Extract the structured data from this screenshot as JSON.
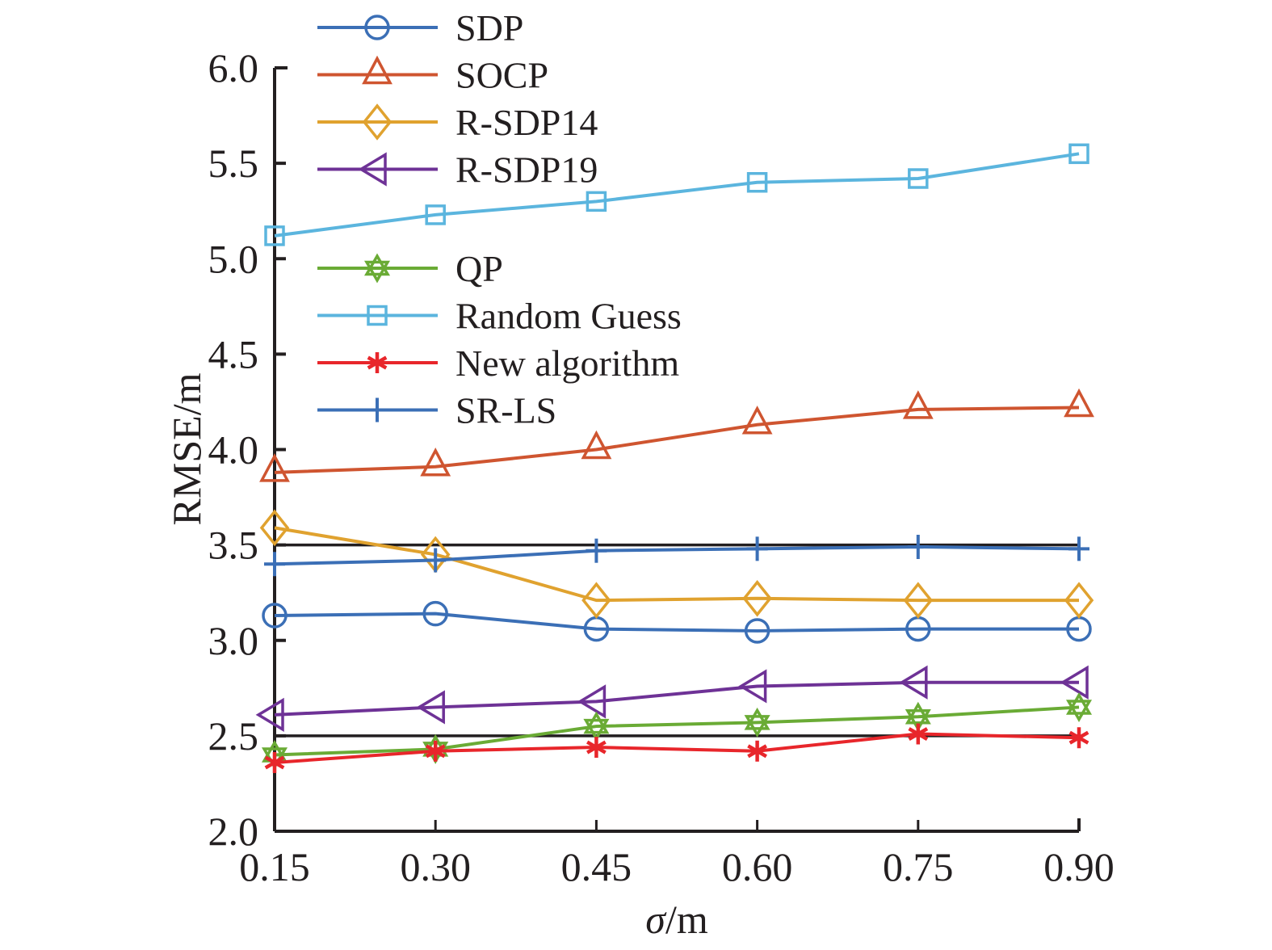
{
  "chart_data": {
    "type": "line",
    "title": "",
    "xlabel": "σ/m",
    "xlabel_italic_part": "σ",
    "xlabel_rest": "/m",
    "ylabel": "RMSE/m",
    "x": [
      0.15,
      0.3,
      0.45,
      0.6,
      0.75,
      0.9
    ],
    "x_tick_labels": [
      "0.15",
      "0.30",
      "0.45",
      "0.60",
      "0.75",
      "0.90"
    ],
    "y_ticks": [
      2.0,
      2.5,
      3.0,
      3.5,
      4.0,
      4.5,
      5.0,
      5.5,
      6.0
    ],
    "y_tick_labels": [
      "2.0",
      "2.5",
      "3.0",
      "3.5",
      "4.0",
      "4.5",
      "5.0",
      "5.5",
      "6.0"
    ],
    "xlim": [
      0.15,
      0.9
    ],
    "ylim": [
      2.0,
      6.0
    ],
    "grid": false,
    "reference_lines": [
      3.5,
      2.5
    ],
    "legend_position": "top-left (two groups inside plot)",
    "series": [
      {
        "name": "SDP",
        "marker": "circle",
        "color": "#3b6fb6",
        "values": [
          3.13,
          3.14,
          3.06,
          3.05,
          3.06,
          3.06
        ]
      },
      {
        "name": "SOCP",
        "marker": "triangle-up",
        "color": "#cf5530",
        "values": [
          3.88,
          3.91,
          4.0,
          4.13,
          4.21,
          4.22
        ]
      },
      {
        "name": "R-SDP14",
        "marker": "diamond",
        "color": "#e0a22f",
        "values": [
          3.59,
          3.45,
          3.21,
          3.22,
          3.21,
          3.21
        ]
      },
      {
        "name": "R-SDP19",
        "marker": "triangle-left",
        "color": "#6e3296",
        "values": [
          2.61,
          2.65,
          2.68,
          2.76,
          2.78,
          2.78
        ]
      },
      {
        "name": "QP",
        "marker": "hexagram",
        "color": "#6aab35",
        "values": [
          2.4,
          2.43,
          2.55,
          2.57,
          2.6,
          2.65
        ]
      },
      {
        "name": "Random Guess",
        "marker": "square",
        "color": "#5bb5de",
        "values": [
          5.12,
          5.23,
          5.3,
          5.4,
          5.42,
          5.55
        ]
      },
      {
        "name": "New algorithm",
        "marker": "asterisk",
        "color": "#e8262b",
        "values": [
          2.36,
          2.42,
          2.44,
          2.42,
          2.51,
          2.49
        ]
      },
      {
        "name": "SR-LS",
        "marker": "plus",
        "color": "#3b6fb6",
        "values": [
          3.4,
          3.42,
          3.47,
          3.48,
          3.49,
          3.48
        ]
      }
    ],
    "legend_groups": [
      [
        "SDP",
        "SOCP",
        "R-SDP14",
        "R-SDP19"
      ],
      [
        "QP",
        "Random Guess",
        "New algorithm",
        "SR-LS"
      ]
    ]
  }
}
